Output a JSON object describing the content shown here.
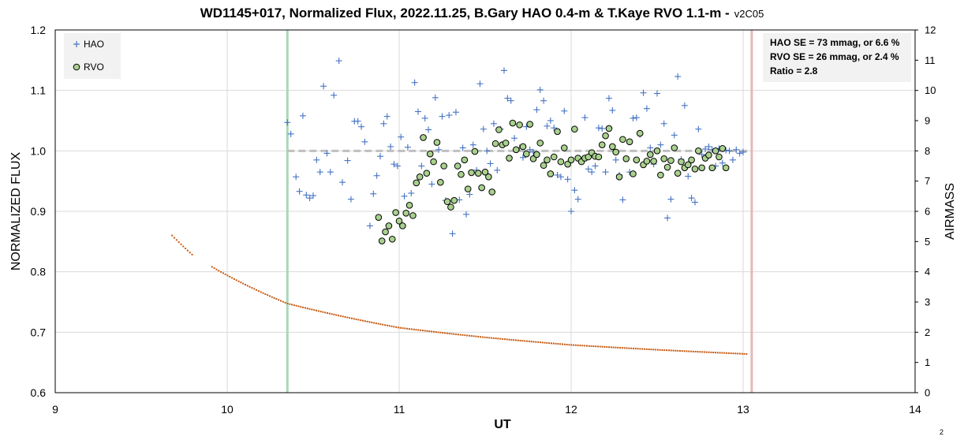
{
  "chart_data": {
    "type": "scatter",
    "title": "WD1145+017, Normalized Flux, 2022.11.25, B.Gary HAO 0.4-m & T.Kaye RVO 1.1-m -",
    "title_version": "v2C05",
    "xlabel": "UT",
    "ylabel": "NORMALIZED FLUX",
    "y2label": "AIRMASS",
    "xlim": [
      9,
      14
    ],
    "ylim": [
      0.6,
      1.2
    ],
    "y2lim": [
      0,
      12
    ],
    "x_ticks": [
      "9",
      "10",
      "11",
      "12",
      "13",
      "14"
    ],
    "y_ticks": [
      "0.6",
      "0.7",
      "0.8",
      "0.9",
      "1.0",
      "1.1",
      "1.2"
    ],
    "y2_ticks": [
      "0",
      "1",
      "2",
      "3",
      "4",
      "5",
      "6",
      "7",
      "8",
      "9",
      "10",
      "11",
      "12"
    ],
    "grid": true,
    "legend_position": "top-left",
    "annotation_lines": [
      "HAO SE = 73 mmag, or 6.6 %",
      "RVO SE = 26 mmag, or 2.4 %",
      "Ratio = 2.8"
    ],
    "page_number": "2",
    "colors": {
      "hao": "#4472c4",
      "rvo_fill": "#a9d18e",
      "rvo_edge": "#000000",
      "airmass": "#c55a11",
      "ref_line": "#bfbfbf",
      "start_line": "#a9d8b8",
      "end_line": "#e6b8b7",
      "grid": "#d9d9d9"
    },
    "reference_line": {
      "y": 1.0,
      "x_start": 10.35,
      "x_end": 13.05
    },
    "vertical_lines": [
      {
        "name": "start",
        "x": 10.35
      },
      {
        "name": "end",
        "x": 13.05
      }
    ],
    "series": [
      {
        "name": "HAO",
        "marker": "plus",
        "x": [
          10.35,
          10.37,
          10.4,
          10.42,
          10.44,
          10.46,
          10.48,
          10.5,
          10.52,
          10.54,
          10.56,
          10.58,
          10.6,
          10.62,
          10.65,
          10.67,
          10.7,
          10.72,
          10.74,
          10.76,
          10.78,
          10.8,
          10.83,
          10.85,
          10.87,
          10.89,
          10.91,
          10.93,
          10.95,
          10.97,
          10.99,
          11.01,
          11.03,
          11.05,
          11.07,
          11.09,
          11.11,
          11.13,
          11.15,
          11.17,
          11.19,
          11.21,
          11.23,
          11.25,
          11.27,
          11.29,
          11.31,
          11.33,
          11.35,
          11.37,
          11.39,
          11.41,
          11.43,
          11.45,
          11.47,
          11.49,
          11.51,
          11.53,
          11.55,
          11.57,
          11.59,
          11.61,
          11.63,
          11.65,
          11.67,
          11.7,
          11.72,
          11.74,
          11.76,
          11.78,
          11.8,
          11.82,
          11.84,
          11.86,
          11.88,
          11.9,
          11.92,
          11.94,
          11.96,
          11.98,
          12.0,
          12.02,
          12.04,
          12.06,
          12.08,
          12.1,
          12.12,
          12.14,
          12.16,
          12.18,
          12.2,
          12.22,
          12.24,
          12.26,
          12.28,
          12.3,
          12.32,
          12.34,
          12.36,
          12.38,
          12.4,
          12.42,
          12.44,
          12.46,
          12.48,
          12.5,
          12.52,
          12.54,
          12.56,
          12.58,
          12.6,
          12.62,
          12.64,
          12.66,
          12.68,
          12.7,
          12.72,
          12.74,
          12.76,
          12.78,
          12.8,
          12.82,
          12.84,
          12.86,
          12.88,
          12.9,
          12.92,
          12.94,
          12.96,
          12.98,
          13.0
        ],
        "y": [
          1.047,
          1.028,
          0.957,
          0.933,
          1.058,
          0.927,
          0.922,
          0.926,
          0.985,
          0.965,
          1.107,
          0.996,
          0.965,
          1.092,
          1.149,
          0.948,
          0.984,
          0.92,
          1.049,
          1.049,
          1.04,
          1.015,
          0.876,
          0.929,
          0.959,
          0.991,
          1.045,
          1.057,
          1.007,
          0.978,
          0.975,
          1.023,
          0.925,
          1.006,
          0.93,
          1.113,
          1.065,
          0.975,
          1.054,
          1.035,
          0.945,
          1.088,
          1.002,
          1.057,
          0.918,
          1.059,
          0.863,
          1.064,
          0.919,
          1.005,
          0.895,
          0.928,
          1.01,
          0.968,
          1.111,
          1.036,
          1.0,
          0.979,
          1.045,
          0.968,
          1.036,
          1.133,
          1.087,
          1.083,
          1.021,
          1.005,
          0.989,
          1.04,
          1.002,
          0.998,
          1.068,
          1.101,
          1.083,
          1.041,
          1.05,
          1.038,
          0.96,
          0.957,
          1.066,
          0.953,
          0.9,
          0.935,
          0.92,
          0.983,
          1.055,
          0.97,
          0.965,
          0.975,
          1.038,
          1.037,
          0.965,
          1.087,
          1.067,
          0.985,
          0.96,
          0.919,
          0.987,
          0.965,
          1.054,
          1.055,
          1.027,
          1.096,
          1.07,
          1.005,
          0.978,
          1.095,
          1.01,
          1.045,
          0.889,
          0.92,
          1.026,
          1.123,
          0.986,
          1.075,
          0.958,
          0.922,
          0.915,
          1.036,
          0.994,
          1.003,
          1.007,
          1.002,
          0.975,
          1.004,
          0.98,
          1.001,
          1.0,
          0.985,
          1.002,
          0.996,
          0.998
        ]
      },
      {
        "name": "RVO",
        "marker": "circle",
        "x": [
          10.88,
          10.9,
          10.92,
          10.94,
          10.96,
          10.98,
          11.0,
          11.02,
          11.04,
          11.06,
          11.08,
          11.1,
          11.12,
          11.14,
          11.16,
          11.18,
          11.2,
          11.22,
          11.24,
          11.26,
          11.28,
          11.3,
          11.32,
          11.34,
          11.36,
          11.38,
          11.4,
          11.42,
          11.44,
          11.46,
          11.48,
          11.5,
          11.52,
          11.54,
          11.56,
          11.58,
          11.6,
          11.62,
          11.64,
          11.66,
          11.68,
          11.7,
          11.72,
          11.74,
          11.76,
          11.78,
          11.8,
          11.82,
          11.84,
          11.86,
          11.88,
          11.9,
          11.92,
          11.94,
          11.96,
          11.98,
          12.0,
          12.02,
          12.04,
          12.06,
          12.08,
          12.1,
          12.12,
          12.14,
          12.16,
          12.18,
          12.2,
          12.22,
          12.24,
          12.26,
          12.28,
          12.3,
          12.32,
          12.34,
          12.36,
          12.38,
          12.4,
          12.42,
          12.44,
          12.46,
          12.48,
          12.5,
          12.52,
          12.54,
          12.56,
          12.58,
          12.6,
          12.62,
          12.64,
          12.66,
          12.68,
          12.7,
          12.72,
          12.74,
          12.76,
          12.78,
          12.8,
          12.82,
          12.84,
          12.86,
          12.88,
          12.9
        ],
        "y": [
          0.89,
          0.851,
          0.866,
          0.876,
          0.854,
          0.898,
          0.884,
          0.876,
          0.897,
          0.91,
          0.893,
          0.947,
          0.957,
          1.022,
          0.963,
          0.995,
          0.982,
          1.014,
          0.948,
          0.975,
          0.916,
          0.907,
          0.918,
          0.975,
          0.961,
          0.985,
          0.937,
          0.964,
          0.999,
          0.963,
          0.939,
          0.965,
          0.957,
          0.932,
          1.012,
          1.035,
          1.01,
          1.013,
          0.988,
          1.046,
          1.002,
          1.043,
          1.007,
          0.995,
          1.044,
          0.987,
          0.994,
          1.013,
          0.976,
          0.985,
          0.962,
          0.99,
          1.032,
          0.982,
          1.005,
          0.978,
          0.985,
          1.036,
          0.988,
          0.982,
          0.988,
          0.99,
          0.997,
          0.991,
          0.99,
          1.01,
          1.025,
          1.037,
          1.007,
          0.998,
          0.957,
          1.019,
          0.987,
          1.015,
          0.962,
          0.985,
          1.029,
          0.977,
          0.983,
          0.994,
          0.983,
          1.0,
          0.96,
          0.987,
          0.973,
          0.984,
          1.005,
          0.963,
          0.982,
          0.972,
          0.977,
          0.985,
          0.97,
          1.0,
          0.972,
          0.988,
          0.993,
          0.972,
          1.0,
          0.99,
          1.004,
          0.972
        ]
      },
      {
        "name": "Airmass",
        "axis": "right",
        "marker": "dot",
        "x_start": 9.68,
        "x_end": 13.02,
        "gap": [
          9.8,
          9.9
        ],
        "points": 260,
        "model": "1/(sin(altitude))",
        "samples": [
          [
            9.68,
            5.2
          ],
          [
            9.8,
            4.55
          ],
          [
            9.9,
            4.2
          ],
          [
            10.35,
            2.95
          ],
          [
            11.0,
            2.15
          ],
          [
            11.5,
            1.83
          ],
          [
            12.0,
            1.58
          ],
          [
            12.5,
            1.42
          ],
          [
            13.02,
            1.28
          ]
        ]
      }
    ]
  }
}
